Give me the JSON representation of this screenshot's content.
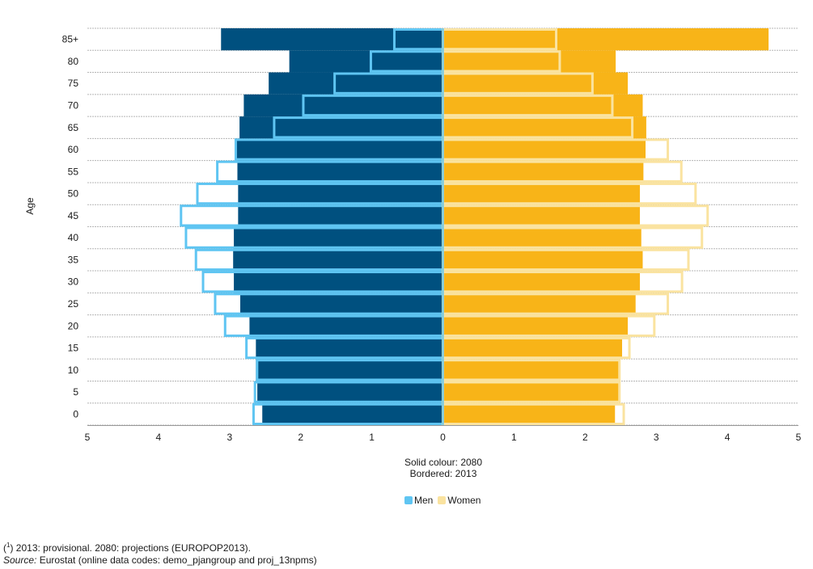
{
  "chart_data": {
    "type": "bar",
    "orientation": "horizontal-population-pyramid",
    "ylabel": "Age",
    "categories": [
      "0",
      "5",
      "10",
      "15",
      "20",
      "25",
      "30",
      "35",
      "40",
      "45",
      "50",
      "55",
      "60",
      "65",
      "70",
      "75",
      "80",
      "85+"
    ],
    "x_ticks": [
      "5",
      "4",
      "3",
      "2",
      "1",
      "0",
      "1",
      "2",
      "3",
      "4",
      "5"
    ],
    "xlim": [
      -5,
      5
    ],
    "series": [
      {
        "name": "Men",
        "year": "2080",
        "style": "solid",
        "color": "#00507f",
        "values": [
          2.54,
          2.61,
          2.63,
          2.63,
          2.72,
          2.85,
          2.94,
          2.95,
          2.94,
          2.88,
          2.88,
          2.89,
          2.92,
          2.86,
          2.8,
          2.45,
          2.16,
          3.12
        ]
      },
      {
        "name": "Men",
        "year": "2013",
        "style": "bordered",
        "color": "#5fc5f2",
        "values": [
          2.68,
          2.66,
          2.63,
          2.78,
          3.08,
          3.22,
          3.39,
          3.49,
          3.63,
          3.7,
          3.47,
          3.19,
          2.93,
          2.39,
          1.98,
          1.54,
          1.03,
          0.7
        ]
      },
      {
        "name": "Women",
        "year": "2080",
        "style": "solid",
        "color": "#f8b418",
        "values": [
          2.42,
          2.47,
          2.49,
          2.52,
          2.6,
          2.71,
          2.77,
          2.81,
          2.79,
          2.77,
          2.77,
          2.82,
          2.85,
          2.86,
          2.81,
          2.6,
          2.43,
          4.58
        ]
      },
      {
        "name": "Women",
        "year": "2013",
        "style": "bordered",
        "color": "#fae3a0",
        "values": [
          2.56,
          2.5,
          2.5,
          2.64,
          2.99,
          3.18,
          3.38,
          3.47,
          3.66,
          3.74,
          3.57,
          3.37,
          3.18,
          2.68,
          2.4,
          2.12,
          1.66,
          1.61
        ]
      }
    ],
    "annotation": {
      "line1": "Solid colour: 2080",
      "line2": "Bordered: 2013"
    },
    "legend": {
      "placement": "bottom-center",
      "items": [
        {
          "label": "Men",
          "color": "#5fc5f2"
        },
        {
          "label": "Women",
          "color": "#fae3a0"
        }
      ]
    },
    "grid": "horizontal-dotted"
  },
  "footnote": {
    "marker": "1",
    "text": "2013: provisional. 2080: projections (EUROPOP2013)."
  },
  "source": {
    "label": "Source:",
    "text": "Eurostat (online data codes: demo_pjangroup and proj_13npms)"
  }
}
